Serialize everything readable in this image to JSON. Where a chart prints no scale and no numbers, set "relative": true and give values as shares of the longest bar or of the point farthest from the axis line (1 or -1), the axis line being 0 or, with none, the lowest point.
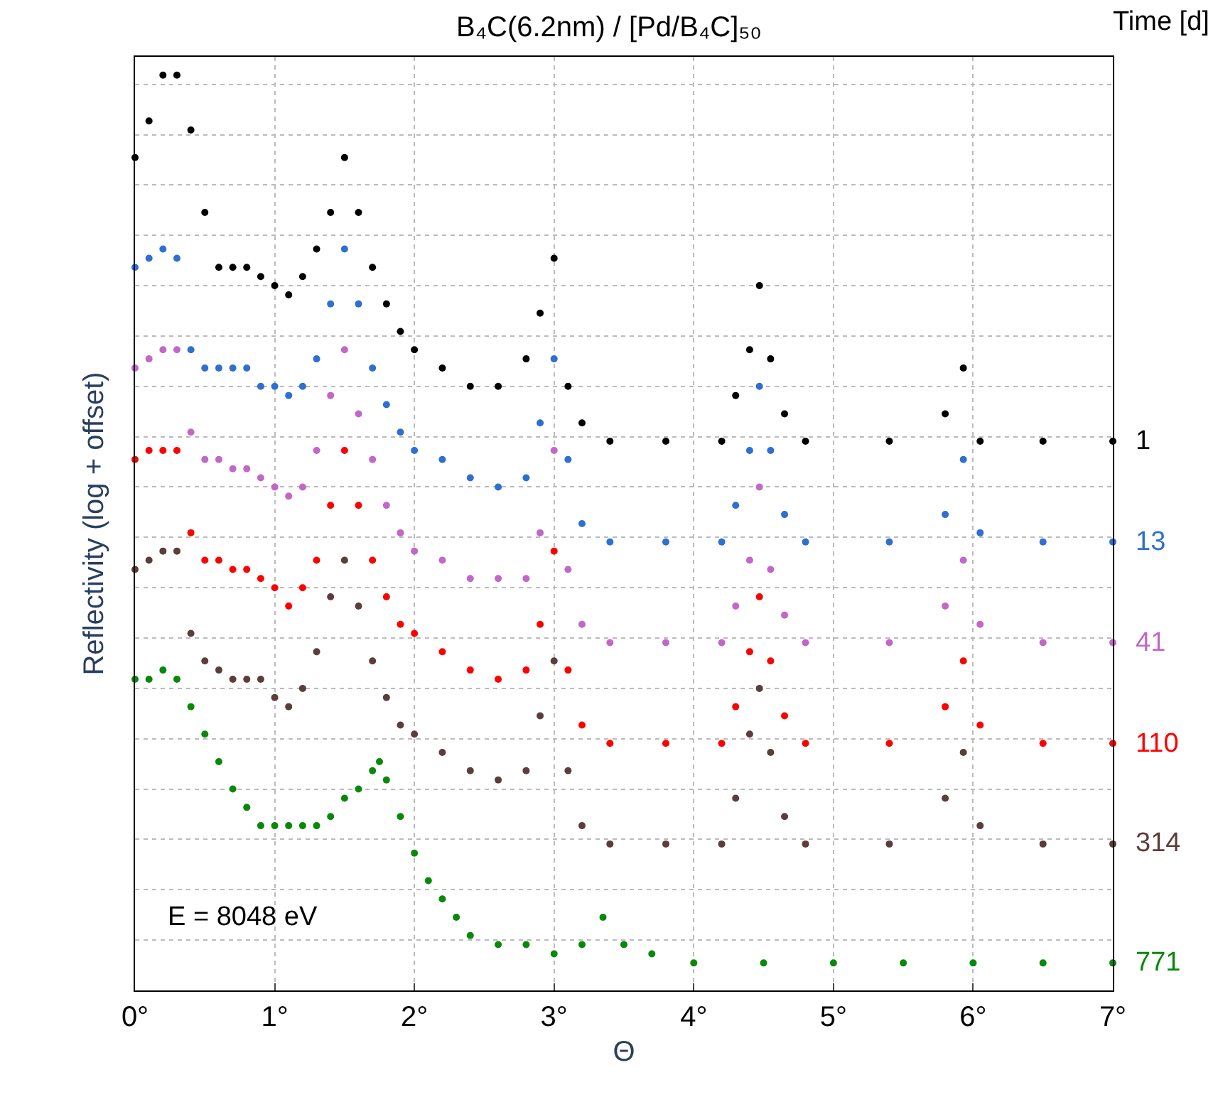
{
  "chart_data": {
    "type": "scatter",
    "title": "B₄C(6.2nm) / [Pd/B₄C]₅₀",
    "xlabel": "Θ",
    "ylabel": "Reflectivity (log + offset)",
    "legend_title": "Time [d]",
    "relative": true,
    "marker": "circle",
    "grid": true,
    "legend": false,
    "x": [
      0,
      0.1,
      0.2,
      0.3,
      0.4,
      0.5,
      0.6,
      0.7,
      0.8,
      0.9,
      1.0,
      1.1,
      1.2,
      1.3,
      1.4,
      1.5,
      1.6,
      1.7,
      1.8,
      1.9,
      2.0,
      2.2,
      2.4,
      2.6,
      2.8,
      2.9,
      3.0,
      3.1,
      3.2,
      3.4,
      3.8,
      4.2,
      4.3,
      4.4,
      4.47,
      4.55,
      4.65,
      4.8,
      5.4,
      5.8,
      5.93,
      6.05,
      6.5,
      7.0
    ],
    "xlim": [
      0,
      7
    ],
    "xticks": [
      {
        "value": 0,
        "label": "0°"
      },
      {
        "value": 1,
        "label": "1°"
      },
      {
        "value": 2,
        "label": "2°"
      },
      {
        "value": 3,
        "label": "3°"
      },
      {
        "value": 4,
        "label": "4°"
      },
      {
        "value": 5,
        "label": "5°"
      },
      {
        "value": 6,
        "label": "6°"
      },
      {
        "value": 7,
        "label": "7°"
      }
    ],
    "series": [
      {
        "name": "1",
        "color": "#000000",
        "values": [
          0.91,
          0.95,
          1.0,
          1.0,
          0.94,
          0.85,
          0.79,
          0.79,
          0.79,
          0.78,
          0.77,
          0.76,
          0.78,
          0.81,
          0.85,
          0.91,
          0.85,
          0.79,
          0.75,
          0.72,
          0.7,
          0.68,
          0.66,
          0.66,
          0.69,
          0.74,
          0.8,
          0.66,
          0.62,
          0.6,
          0.6,
          0.6,
          0.65,
          0.7,
          0.77,
          0.69,
          0.63,
          0.6,
          0.6,
          0.63,
          0.68,
          0.6,
          0.6,
          0.6
        ]
      },
      {
        "name": "13",
        "color": "#2e6fd0",
        "values": [
          0.79,
          0.8,
          0.81,
          0.8,
          0.7,
          0.68,
          0.68,
          0.68,
          0.68,
          0.66,
          0.66,
          0.65,
          0.66,
          0.69,
          0.75,
          0.81,
          0.75,
          0.68,
          0.64,
          0.61,
          0.59,
          0.58,
          0.56,
          0.55,
          0.56,
          0.62,
          0.69,
          0.58,
          0.51,
          0.49,
          0.49,
          0.49,
          0.53,
          0.59,
          0.66,
          0.59,
          0.52,
          0.49,
          0.49,
          0.52,
          0.58,
          0.5,
          0.49,
          0.49
        ]
      },
      {
        "name": "41",
        "color": "#c267c8",
        "values": [
          0.68,
          0.69,
          0.7,
          0.7,
          0.61,
          0.58,
          0.58,
          0.57,
          0.57,
          0.56,
          0.55,
          0.54,
          0.55,
          0.59,
          0.65,
          0.7,
          0.63,
          0.58,
          0.53,
          0.5,
          0.48,
          0.47,
          0.45,
          0.45,
          0.45,
          0.5,
          0.59,
          0.46,
          0.4,
          0.38,
          0.38,
          0.38,
          0.42,
          0.47,
          0.55,
          0.46,
          0.41,
          0.38,
          0.38,
          0.42,
          0.47,
          0.4,
          0.38,
          0.38
        ]
      },
      {
        "name": "110",
        "color": "#ff0000",
        "values": [
          0.58,
          0.59,
          0.59,
          0.59,
          0.5,
          0.47,
          0.47,
          0.46,
          0.46,
          0.45,
          0.44,
          0.42,
          0.44,
          0.47,
          0.53,
          0.59,
          0.53,
          0.47,
          0.43,
          0.4,
          0.39,
          0.37,
          0.35,
          0.34,
          0.35,
          0.4,
          0.48,
          0.35,
          0.29,
          0.27,
          0.27,
          0.27,
          0.31,
          0.37,
          0.43,
          0.36,
          0.3,
          0.27,
          0.27,
          0.31,
          0.36,
          0.29,
          0.27,
          0.27
        ]
      },
      {
        "name": "314",
        "color": "#5c3c3c",
        "values": [
          0.46,
          0.47,
          0.48,
          0.48,
          0.39,
          0.36,
          0.35,
          0.34,
          0.34,
          0.34,
          0.32,
          0.31,
          0.33,
          0.37,
          0.43,
          0.47,
          0.42,
          0.36,
          0.32,
          0.29,
          0.28,
          0.26,
          0.24,
          0.23,
          0.24,
          0.3,
          0.36,
          0.24,
          0.18,
          0.16,
          0.16,
          0.16,
          0.21,
          0.28,
          0.33,
          0.26,
          0.19,
          0.16,
          0.16,
          0.21,
          0.26,
          0.18,
          0.16,
          0.16
        ]
      },
      {
        "name": "771",
        "color": "#0a880a",
        "x": [
          0,
          0.1,
          0.2,
          0.3,
          0.4,
          0.5,
          0.6,
          0.7,
          0.8,
          0.9,
          1.0,
          1.1,
          1.2,
          1.3,
          1.4,
          1.5,
          1.6,
          1.7,
          1.75,
          1.8,
          1.9,
          2.0,
          2.1,
          2.2,
          2.3,
          2.4,
          2.6,
          2.8,
          3.0,
          3.2,
          3.35,
          3.5,
          3.7,
          4.0,
          4.5,
          5.0,
          5.5,
          6.0,
          6.5,
          7.0
        ],
        "values": [
          0.34,
          0.34,
          0.35,
          0.34,
          0.31,
          0.28,
          0.25,
          0.22,
          0.2,
          0.18,
          0.18,
          0.18,
          0.18,
          0.18,
          0.19,
          0.21,
          0.22,
          0.24,
          0.25,
          0.23,
          0.19,
          0.15,
          0.12,
          0.1,
          0.08,
          0.06,
          0.05,
          0.05,
          0.04,
          0.05,
          0.08,
          0.05,
          0.04,
          0.03,
          0.03,
          0.03,
          0.03,
          0.03,
          0.03,
          0.03
        ]
      }
    ],
    "annotations": [
      "E = 8048 eV"
    ]
  }
}
